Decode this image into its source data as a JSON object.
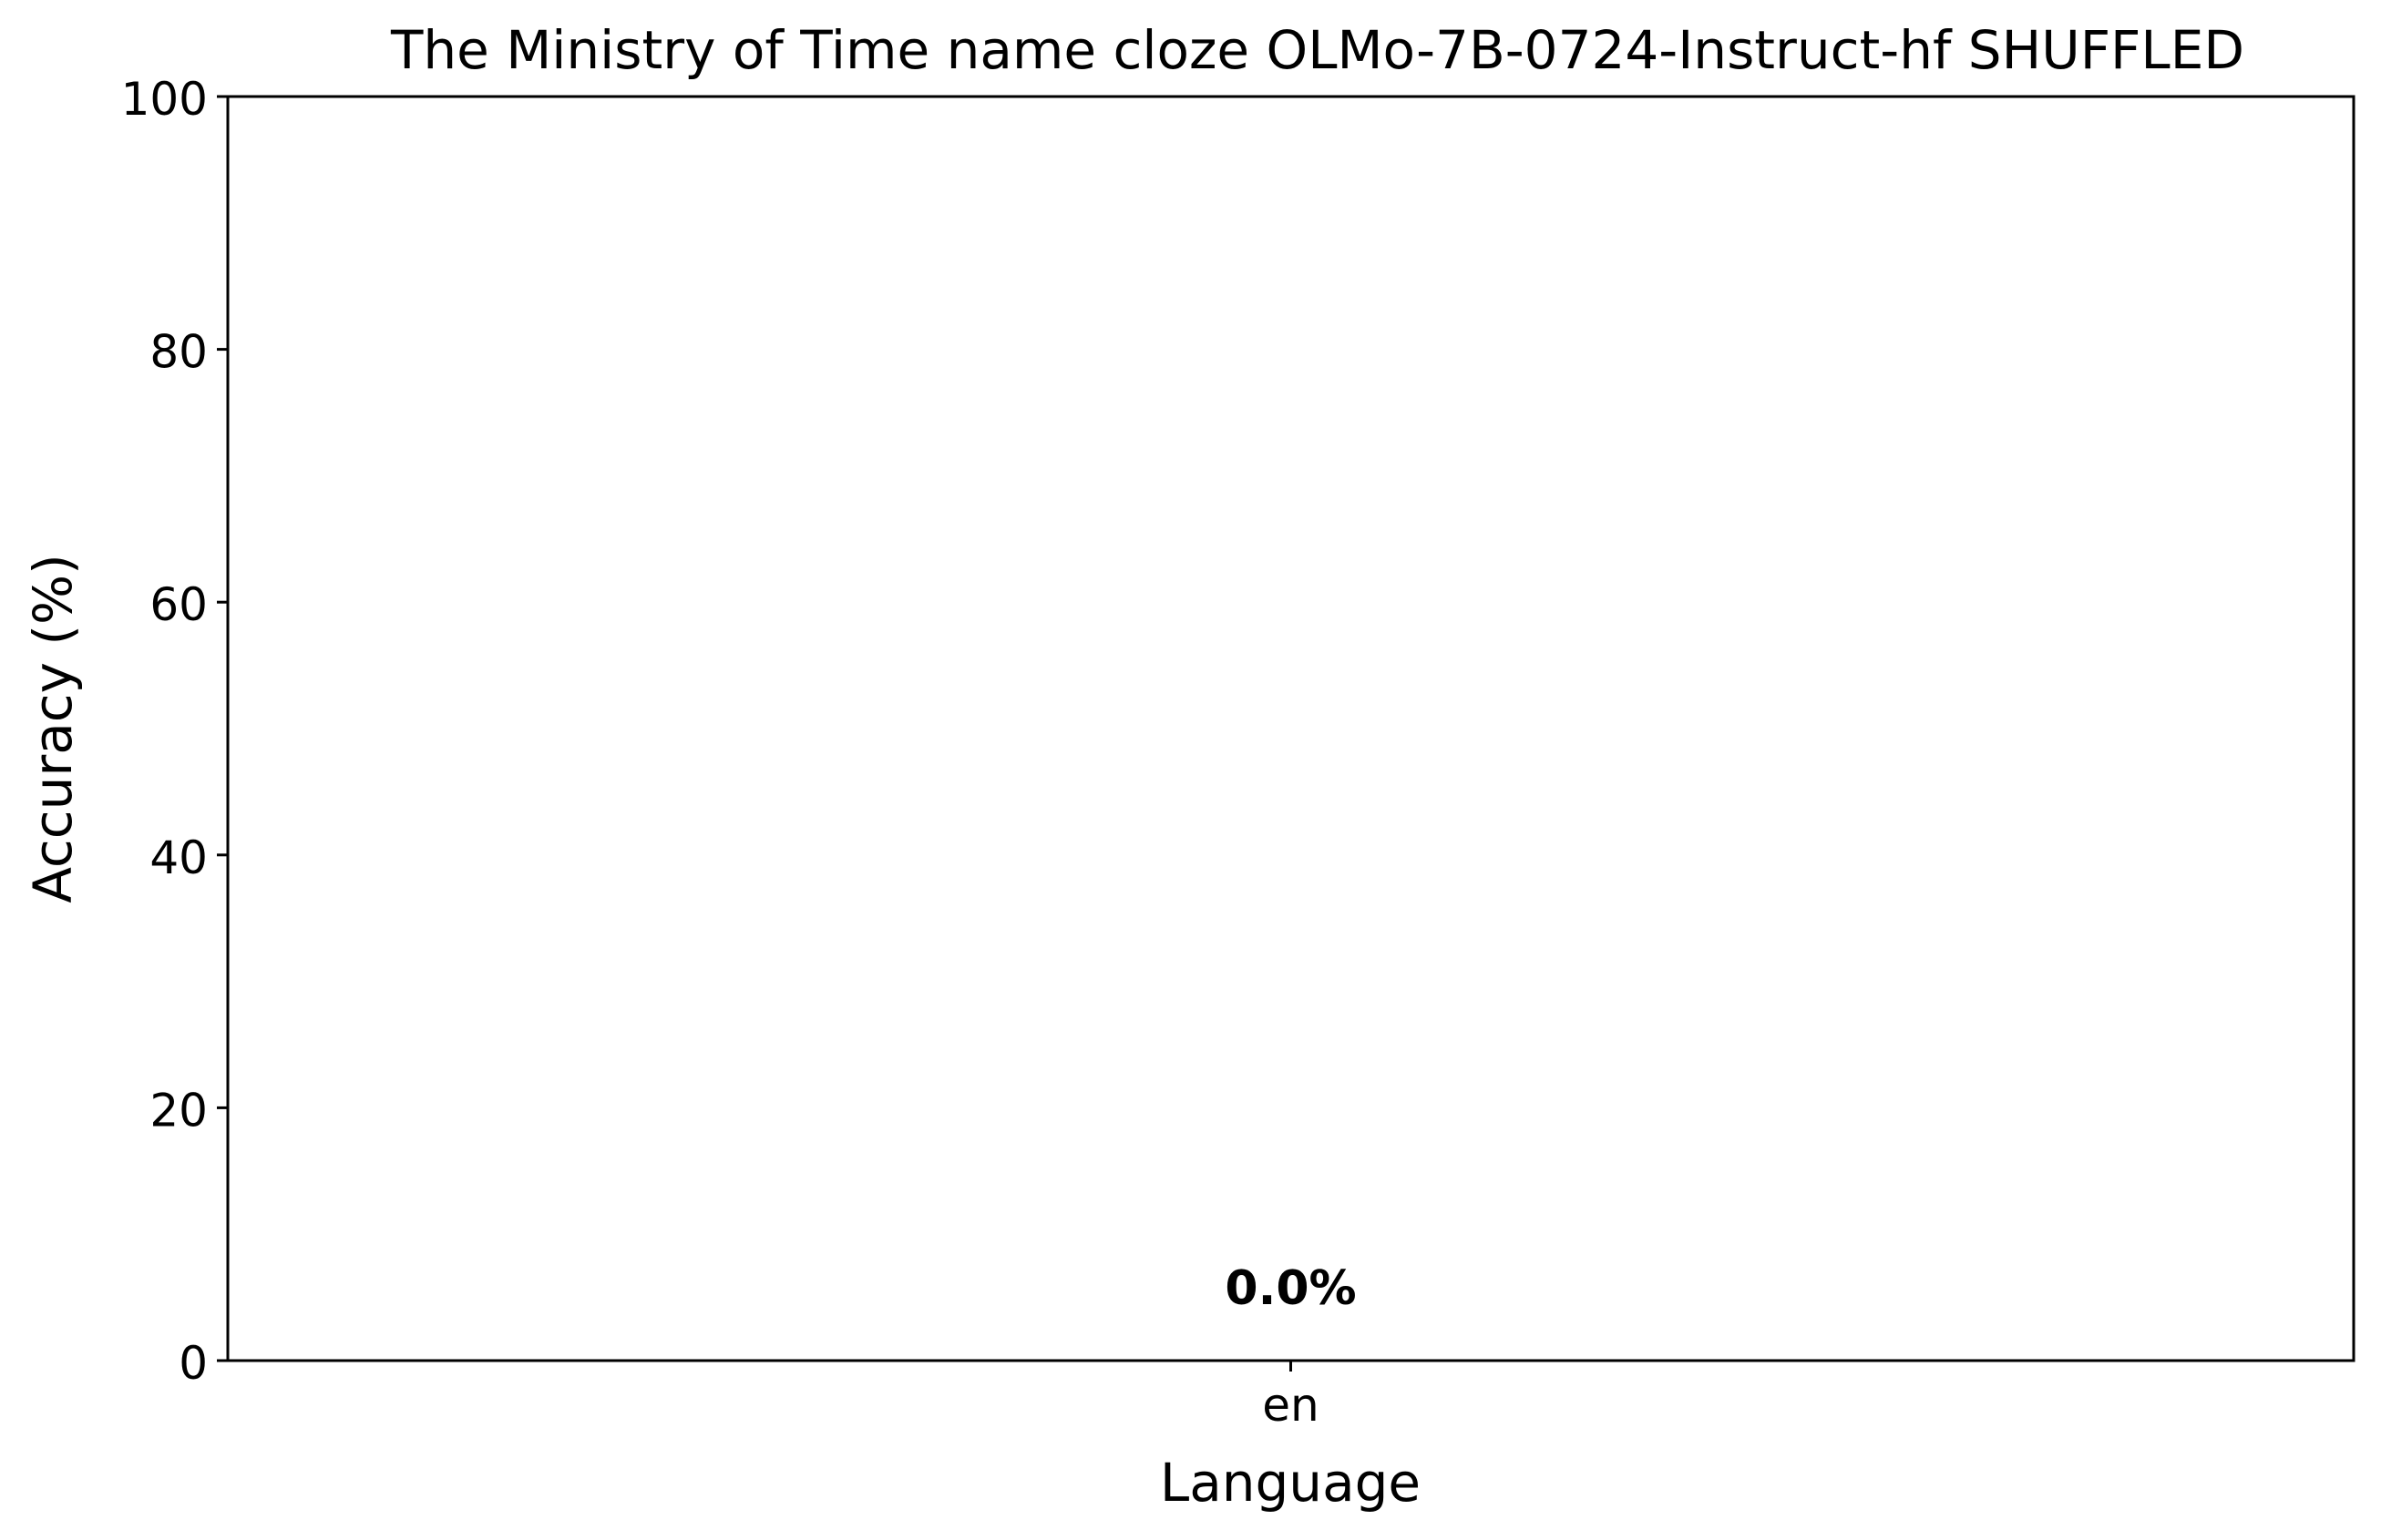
{
  "chart_data": {
    "type": "bar",
    "title": "The Ministry of Time name cloze OLMo-7B-0724-Instruct-hf SHUFFLED",
    "xlabel": "Language",
    "ylabel": "Accuracy (%)",
    "categories": [
      "en"
    ],
    "values": [
      0.0
    ],
    "value_labels": [
      "0.0%"
    ],
    "ylim": [
      0,
      100
    ],
    "yticks": [
      0,
      20,
      40,
      60,
      80,
      100
    ],
    "grid": false,
    "legend": null
  },
  "colors": {
    "axis": "#000000",
    "bar": "#1f77b4",
    "background": "#ffffff"
  }
}
